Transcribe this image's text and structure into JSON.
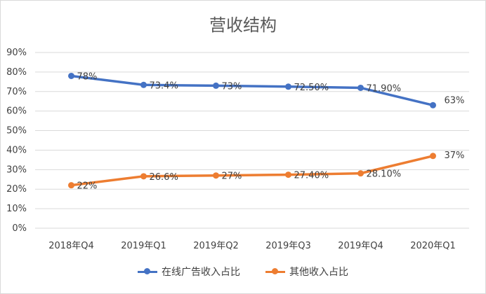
{
  "chart_data": {
    "type": "line",
    "title": "营收结构",
    "categories": [
      "2018年Q4",
      "2019年Q1",
      "2019年Q2",
      "2019年Q3",
      "2019年Q4",
      "2020年Q1"
    ],
    "series": [
      {
        "name": "在线广告收入占比",
        "color": "#4472c4",
        "values": [
          78,
          73.4,
          73,
          72.5,
          71.9,
          63
        ],
        "labels": [
          "78%",
          "73.4%",
          "73%",
          "72.50%",
          "71.90%",
          "63%"
        ]
      },
      {
        "name": "其他收入占比",
        "color": "#ed7d31",
        "values": [
          22,
          26.6,
          27,
          27.4,
          28.1,
          37
        ],
        "labels": [
          "22%",
          "26.6%",
          "27%",
          "27.40%",
          "28.10%",
          "37%"
        ]
      }
    ],
    "ylim": [
      0,
      90
    ],
    "yticks": [
      "0%",
      "10%",
      "20%",
      "30%",
      "40%",
      "50%",
      "60%",
      "70%",
      "80%",
      "90%"
    ],
    "grid": true,
    "legend": "bottom"
  }
}
